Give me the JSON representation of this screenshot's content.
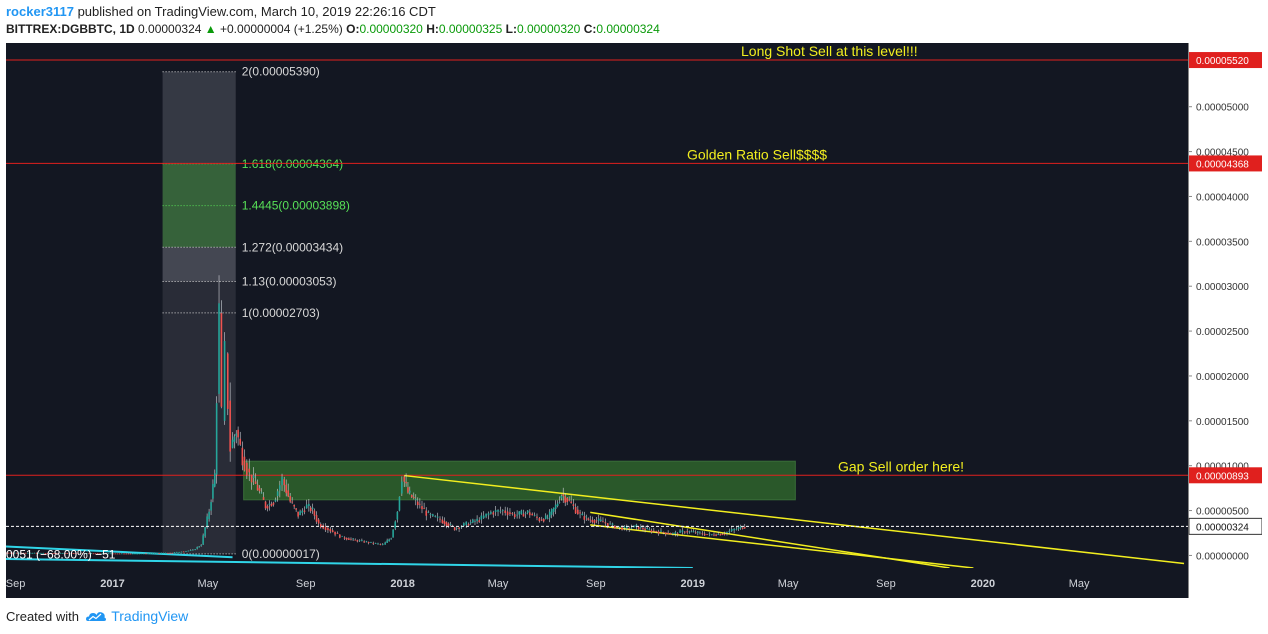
{
  "header": {
    "user": "rocker3117",
    "published": "published on TradingView.com, March 10, 2019 22:26:16 CDT",
    "symbol": "BITTREX:DGBBTC, 1D",
    "last": "0.00000324",
    "change_arrow": "▲",
    "change": "+0.00000004 (+1.25%)",
    "o_label": "O:",
    "o_val": "0.00000320",
    "h_label": "H:",
    "h_val": "0.00000325",
    "l_label": "L:",
    "l_val": "0.00000320",
    "c_label": "C:",
    "c_val": "0.00000324"
  },
  "footer": {
    "created": "Created with",
    "brand": "TradingView",
    "logo_icon": "tradingview-cloud-icon"
  },
  "colors": {
    "background": "#131722",
    "axis_background": "#ffffff",
    "red_line": "#e0201e",
    "yellow": "#f2ee1f",
    "green_zone": "#3e8e31",
    "cyan": "#30d5e8",
    "fib_green": "#57e057",
    "fib_white": "#d9d9d9",
    "up": "#26a69a",
    "down": "#ef5350"
  },
  "chart_data": {
    "type": "candlestick",
    "x_ticks": [
      "Sep",
      "2017",
      "May",
      "Sep",
      "2018",
      "May",
      "Sep",
      "2019",
      "May",
      "Sep",
      "2020",
      "May"
    ],
    "x_tick_dates": [
      "2016-09-01",
      "2017-01-01",
      "2017-05-01",
      "2017-09-01",
      "2018-01-01",
      "2018-05-01",
      "2018-09-01",
      "2019-01-01",
      "2019-05-01",
      "2019-09-01",
      "2020-01-01",
      "2020-05-01"
    ],
    "xlim": [
      "2016-08-20",
      "2020-09-15"
    ],
    "y_ticks": [
      "0.00000000",
      "0.00000500",
      "0.00001000",
      "0.00001500",
      "0.00002000",
      "0.00002500",
      "0.00003000",
      "0.00003500",
      "0.00004000",
      "0.00004500",
      "0.00005000"
    ],
    "ylim": [
      -1.4e-06,
      5.71e-05
    ],
    "horizontal_lines": [
      {
        "value": 5.52e-05,
        "label": "0.00005520",
        "text": "Long Shot Sell at this level!!!"
      },
      {
        "value": 4.368e-05,
        "label": "0.00004368",
        "text": "Golden Ratio Sell$$$$"
      },
      {
        "value": 8.93e-06,
        "label": "0.00000893",
        "text": "Gap Sell order here!"
      }
    ],
    "last_price": {
      "value": 3.24e-06,
      "label": "0.00000324"
    },
    "fib_levels": [
      {
        "ratio": "2",
        "value": 5.39e-05,
        "label": "2(0.00005390)"
      },
      {
        "ratio": "1.618",
        "value": 4.364e-05,
        "label": "1.618(0.00004364)"
      },
      {
        "ratio": "1.4445",
        "value": 3.898e-05,
        "label": "1.4445(0.00003898)"
      },
      {
        "ratio": "1.272",
        "value": 3.434e-05,
        "label": "1.272(0.00003434)"
      },
      {
        "ratio": "1.13",
        "value": 3.053e-05,
        "label": "1.13(0.00003053)"
      },
      {
        "ratio": "1",
        "value": 2.703e-05,
        "label": "1(0.00002703)"
      },
      {
        "ratio": "0",
        "value": 1.7e-07,
        "label": "0(0.00000017)"
      }
    ],
    "fib_range_dates": [
      "2017-03-05",
      "2017-06-05"
    ],
    "gap_zone": {
      "start": "2017-06-15",
      "end": "2019-05-10",
      "low": 6.2e-06,
      "high": 1.05e-05
    },
    "left_annotation": "0051 (−68.00%) −51",
    "trendlines": [
      {
        "color": "yellow",
        "from": [
          "2018-01-03",
          8.9e-06
        ],
        "to": [
          "2020-09-10",
          -9e-07
        ]
      },
      {
        "color": "yellow",
        "from": [
          "2018-08-25",
          4.8e-06
        ],
        "to": [
          "2019-11-20",
          -1.4e-06
        ]
      },
      {
        "color": "yellow",
        "from": [
          "2018-08-25",
          3.4e-06
        ],
        "to": [
          "2019-12-20",
          -1.4e-06
        ]
      },
      {
        "color": "cyan",
        "from": [
          "2016-08-20",
          1e-06
        ],
        "to": [
          "2017-06-01",
          -2e-07
        ]
      },
      {
        "color": "cyan",
        "from": [
          "2016-08-20",
          -4e-07
        ],
        "to": [
          "2019-01-01",
          -1.4e-06
        ]
      }
    ],
    "price_series": [
      [
        "2016-08-20",
        3e-07
      ],
      [
        "2017-02-01",
        2e-07
      ],
      [
        "2017-03-20",
        3e-07
      ],
      [
        "2017-04-15",
        6e-07
      ],
      [
        "2017-04-25",
        1.2e-06
      ],
      [
        "2017-05-05",
        5e-06
      ],
      [
        "2017-05-12",
        9e-06
      ],
      [
        "2017-05-18",
        2.7e-05
      ],
      [
        "2017-05-22",
        1.5e-05
      ],
      [
        "2017-05-26",
        2.25e-05
      ],
      [
        "2017-06-01",
        1.2e-05
      ],
      [
        "2017-06-08",
        1.4e-05
      ],
      [
        "2017-06-16",
        1.1e-05
      ],
      [
        "2017-06-25",
        9e-06
      ],
      [
        "2017-07-05",
        7.5e-06
      ],
      [
        "2017-07-15",
        5.5e-06
      ],
      [
        "2017-07-25",
        6e-06
      ],
      [
        "2017-08-05",
        8.5e-06
      ],
      [
        "2017-08-15",
        6e-06
      ],
      [
        "2017-08-25",
        4.5e-06
      ],
      [
        "2017-09-05",
        5.5e-06
      ],
      [
        "2017-09-12",
        5e-06
      ],
      [
        "2017-09-20",
        3.5e-06
      ],
      [
        "2017-10-05",
        2.8e-06
      ],
      [
        "2017-10-20",
        2e-06
      ],
      [
        "2017-11-05",
        1.7e-06
      ],
      [
        "2017-11-25",
        1.4e-06
      ],
      [
        "2017-12-10",
        1.2e-06
      ],
      [
        "2017-12-20",
        2e-06
      ],
      [
        "2017-12-28",
        5e-06
      ],
      [
        "2018-01-03",
        8.8e-06
      ],
      [
        "2018-01-10",
        7e-06
      ],
      [
        "2018-01-20",
        6e-06
      ],
      [
        "2018-02-05",
        4.5e-06
      ],
      [
        "2018-02-20",
        4e-06
      ],
      [
        "2018-03-10",
        3e-06
      ],
      [
        "2018-03-25",
        3.5e-06
      ],
      [
        "2018-04-10",
        4e-06
      ],
      [
        "2018-04-25",
        4.8e-06
      ],
      [
        "2018-05-10",
        5e-06
      ],
      [
        "2018-05-25",
        4.5e-06
      ],
      [
        "2018-06-10",
        4.8e-06
      ],
      [
        "2018-06-25",
        4e-06
      ],
      [
        "2018-07-05",
        4.2e-06
      ],
      [
        "2018-07-15",
        5.5e-06
      ],
      [
        "2018-07-22",
        6.8e-06
      ],
      [
        "2018-08-01",
        6e-06
      ],
      [
        "2018-08-15",
        4.5e-06
      ],
      [
        "2018-08-25",
        4e-06
      ],
      [
        "2018-09-10",
        3.8e-06
      ],
      [
        "2018-09-25",
        3.3e-06
      ],
      [
        "2018-10-10",
        3e-06
      ],
      [
        "2018-10-25",
        3.2e-06
      ],
      [
        "2018-11-10",
        2.8e-06
      ],
      [
        "2018-11-25",
        2.6e-06
      ],
      [
        "2018-12-10",
        2.4e-06
      ],
      [
        "2018-12-25",
        2.7e-06
      ],
      [
        "2019-01-10",
        2.5e-06
      ],
      [
        "2019-01-25",
        2.3e-06
      ],
      [
        "2019-02-10",
        2.4e-06
      ],
      [
        "2019-02-25",
        2.9e-06
      ],
      [
        "2019-03-10",
        3.24e-06
      ]
    ]
  }
}
